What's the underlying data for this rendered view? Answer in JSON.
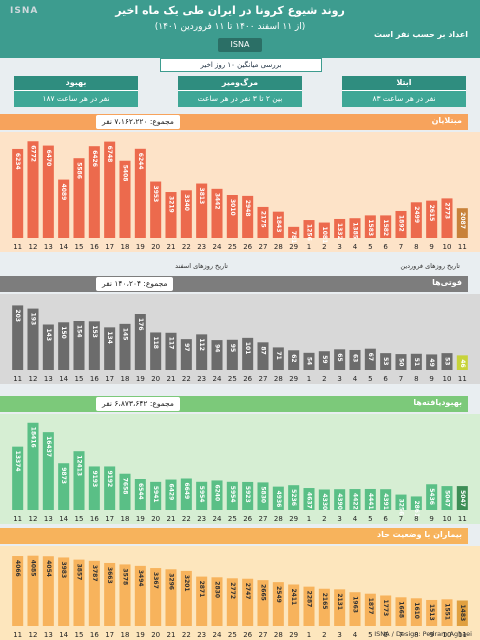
{
  "header": {
    "title": "روند شیوع کرونا در ایران طی یک ماه اخیر",
    "subtitle": "(از ۱۱ اسفند ۱۴۰۰ تا ۱۱ فروردین ۱۴۰۱)",
    "badge": "ISNA",
    "side_title": "اعداد بر حسب نفر است",
    "review": "بررسی میانگین ۱۰ روز اخیر"
  },
  "summary_boxes": [
    {
      "title": "ابتلا",
      "value": "۸۳ نفر در هر ساعت",
      "color": "#2f8d7f"
    },
    {
      "title": "مرگ‌ومیر",
      "value": "بین ۲ تا ۳ نفر در هر ساعت",
      "color": "#2f8d7f"
    },
    {
      "title": "بهبود",
      "value": "۱۸۷ نفر در هر ساعت",
      "color": "#2f8d7f"
    }
  ],
  "panels": {
    "infections": {
      "title": "مبتلایان",
      "total": "مجموع: ۷،۱۶۲،۲۲۰ نفر",
      "color": "#f7a35c",
      "bar_color": "#ec6a4d",
      "highlight": "#c8823a"
    },
    "deaths": {
      "title": "فوتی‌ها",
      "total": "مجموع: ۱۴۰،۲۰۴ نفر",
      "color": "#808080",
      "bar_color": "#6c6c6c",
      "highlight": "#c7d33a"
    },
    "recoveries": {
      "title": "بهبودیافته‌ها",
      "total": "مجموع: ۶،۸۷۳،۶۴۲ نفر",
      "color": "#8ccf8a",
      "bar_color": "#5abf86",
      "highlight": "#3e8e56"
    },
    "critical": {
      "title": "بیماران با وضعیت حاد",
      "total": "",
      "color": "#f9c97a",
      "bar_color": "#f7b35c",
      "highlight": "#e0a040"
    }
  },
  "axis_captions": {
    "esfand": "تاریخ روزهای اسفند",
    "farvardin": "تاریخ روزهای فروردین"
  },
  "design_credit": "ISNA / Design: Pedram Aghaei",
  "watermark": "ISNA",
  "chart_data": [
    {
      "type": "bar",
      "title": "مبتلایان",
      "categories": [
        "11",
        "12",
        "13",
        "14",
        "15",
        "16",
        "17",
        "18",
        "19",
        "20",
        "21",
        "22",
        "23",
        "24",
        "25",
        "26",
        "27",
        "28",
        "29",
        "1",
        "2",
        "3",
        "4",
        "5",
        "6",
        "7",
        "8",
        "9",
        "10",
        "11"
      ],
      "values": [
        6234,
        6772,
        6470,
        4089,
        5586,
        6426,
        6748,
        5408,
        6244,
        3953,
        3219,
        3340,
        3813,
        3442,
        3010,
        2948,
        2175,
        1843,
        781,
        1256,
        1081,
        1332,
        1385,
        1583,
        1582,
        1892,
        2499,
        2615,
        2773,
        2087
      ]
    },
    {
      "type": "bar",
      "title": "فوتی‌ها",
      "categories": [
        "11",
        "12",
        "13",
        "14",
        "15",
        "16",
        "17",
        "18",
        "19",
        "20",
        "21",
        "22",
        "23",
        "24",
        "25",
        "26",
        "27",
        "28",
        "29",
        "1",
        "2",
        "3",
        "4",
        "5",
        "6",
        "7",
        "8",
        "9",
        "10",
        "11"
      ],
      "values": [
        203,
        193,
        143,
        150,
        154,
        153,
        134,
        145,
        176,
        118,
        117,
        97,
        112,
        94,
        95,
        101,
        87,
        71,
        62,
        54,
        59,
        65,
        63,
        67,
        53,
        50,
        51,
        49,
        53,
        46
      ]
    },
    {
      "type": "bar",
      "title": "بهبودیافته‌ها",
      "categories": [
        "11",
        "12",
        "13",
        "14",
        "15",
        "16",
        "17",
        "18",
        "19",
        "20",
        "21",
        "22",
        "23",
        "24",
        "25",
        "26",
        "27",
        "28",
        "29",
        "1",
        "2",
        "3",
        "4",
        "5",
        "6",
        "7",
        "8",
        "9",
        "10",
        "11"
      ],
      "values": [
        13374,
        18416,
        16437,
        9873,
        12413,
        9193,
        9192,
        7658,
        6544,
        5941,
        6429,
        6649,
        5954,
        6240,
        5954,
        5923,
        5830,
        4936,
        5236,
        4637,
        4330,
        4390,
        4422,
        4441,
        4391,
        3256,
        2861,
        5436,
        5047,
        5047
      ]
    },
    {
      "type": "bar",
      "title": "بیماران با وضعیت حاد",
      "categories": [
        "11",
        "12",
        "13",
        "14",
        "15",
        "16",
        "17",
        "18",
        "19",
        "20",
        "21",
        "22",
        "23",
        "24",
        "25",
        "26",
        "27",
        "28",
        "29",
        "1",
        "2",
        "3",
        "4",
        "5",
        "6",
        "7",
        "8",
        "9",
        "10",
        "11"
      ],
      "values": [
        4066,
        4085,
        4054,
        3983,
        3857,
        3787,
        3663,
        3578,
        3494,
        3367,
        3296,
        3201,
        2871,
        2830,
        2772,
        2747,
        2665,
        2549,
        2411,
        2287,
        2165,
        2131,
        1963,
        1877,
        1773,
        1668,
        1610,
        1513,
        1551,
        1483
      ]
    }
  ]
}
